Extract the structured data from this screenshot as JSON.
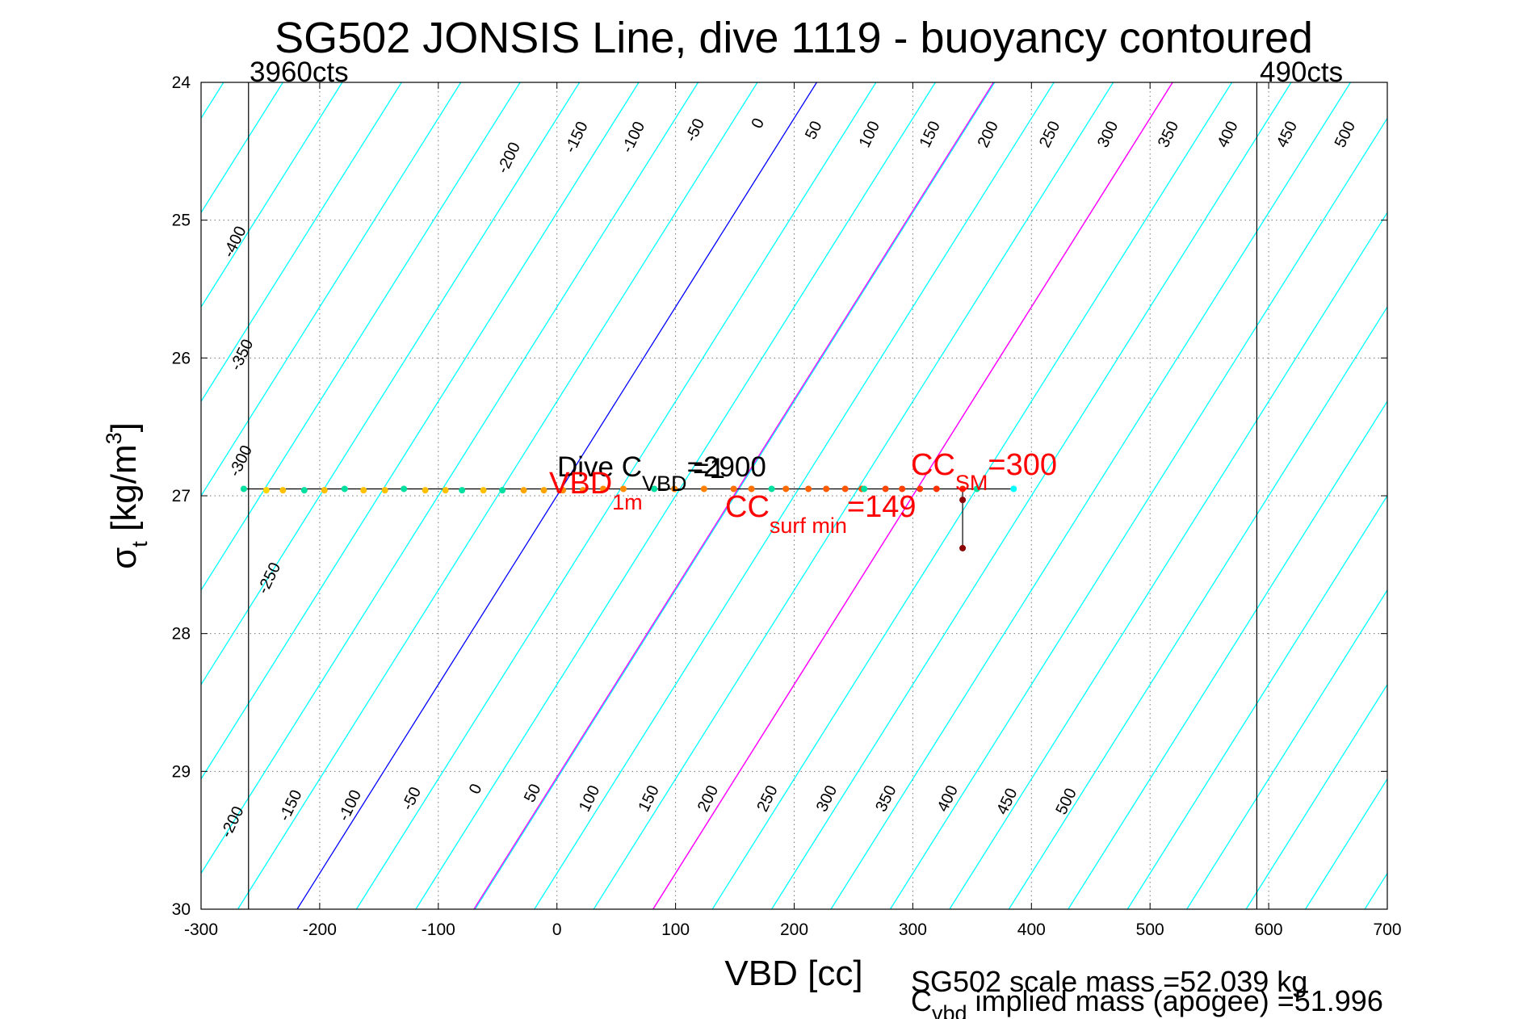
{
  "chart_data": {
    "type": "scatter",
    "title": "SG502 JONSIS Line, dive 1119 - buoyancy contoured",
    "xlabel": "VBD [cc]",
    "ylabel": {
      "sym": "σ",
      "sub": "t",
      "unit_pre": " [kg/m",
      "sup": "3",
      "unit_post": "]"
    },
    "xlim": [
      -300,
      700
    ],
    "ylim": [
      24,
      30
    ],
    "y_reversed": true,
    "grid": true,
    "xticks": [
      -300,
      -200,
      -100,
      0,
      100,
      200,
      300,
      400,
      500,
      600,
      700
    ],
    "yticks": [
      24,
      25,
      26,
      27,
      28,
      29,
      30
    ],
    "colors": {
      "contour": "#00ffff",
      "zero_contour": "#0000ff",
      "cc_contour": "#ff00ff",
      "annotation": "#ff0000"
    },
    "vbd_limits": [
      {
        "x": -260,
        "label": "3960cts"
      },
      {
        "x": 590,
        "label": "490cts"
      }
    ],
    "contours": {
      "slope_vbd_per_sigma": -73,
      "levels": [
        -400,
        -350,
        -300,
        -250,
        -200,
        -150,
        -100,
        -50,
        0,
        50,
        100,
        150,
        200,
        250,
        300,
        350,
        400,
        450,
        500
      ],
      "top_labels": [
        {
          "level": -200,
          "x": -40,
          "y": 24.55
        },
        {
          "level": -150,
          "x": 17,
          "y": 24.4
        },
        {
          "level": -100,
          "x": 65,
          "y": 24.4
        },
        {
          "level": -50,
          "x": 117,
          "y": 24.35
        },
        {
          "level": 0,
          "x": 170,
          "y": 24.3
        },
        {
          "level": 50,
          "x": 217,
          "y": 24.35
        },
        {
          "level": 100,
          "x": 264,
          "y": 24.38
        },
        {
          "level": 150,
          "x": 315,
          "y": 24.38
        },
        {
          "level": 200,
          "x": 364,
          "y": 24.38
        },
        {
          "level": 250,
          "x": 416,
          "y": 24.38
        },
        {
          "level": 300,
          "x": 465,
          "y": 24.38
        },
        {
          "level": 350,
          "x": 516,
          "y": 24.38
        },
        {
          "level": 400,
          "x": 566,
          "y": 24.38
        },
        {
          "level": 450,
          "x": 616,
          "y": 24.38
        },
        {
          "level": 500,
          "x": 665,
          "y": 24.38
        }
      ],
      "left_labels": [
        {
          "level": -400,
          "x": -271,
          "y": 25.16
        },
        {
          "level": -350,
          "x": -265,
          "y": 25.98
        },
        {
          "level": -300,
          "x": -266,
          "y": 26.75
        },
        {
          "level": -250,
          "x": -242,
          "y": 27.6
        }
      ],
      "bottom_labels": [
        {
          "level": -200,
          "x": -273,
          "y": 29.37
        },
        {
          "level": -150,
          "x": -224,
          "y": 29.25
        },
        {
          "level": -100,
          "x": -174,
          "y": 29.25
        },
        {
          "level": -50,
          "x": -122,
          "y": 29.2
        },
        {
          "level": 0,
          "x": -68,
          "y": 29.13
        },
        {
          "level": 50,
          "x": -20,
          "y": 29.16
        },
        {
          "level": 100,
          "x": 28,
          "y": 29.2
        },
        {
          "level": 150,
          "x": 78,
          "y": 29.2
        },
        {
          "level": 200,
          "x": 128,
          "y": 29.2
        },
        {
          "level": 250,
          "x": 178,
          "y": 29.2
        },
        {
          "level": 300,
          "x": 228,
          "y": 29.2
        },
        {
          "level": 350,
          "x": 278,
          "y": 29.2
        },
        {
          "level": 400,
          "x": 330,
          "y": 29.2
        },
        {
          "level": 450,
          "x": 380,
          "y": 29.22
        },
        {
          "level": 500,
          "x": 430,
          "y": 29.22
        }
      ]
    },
    "scatter_points": [
      {
        "x": -264,
        "y": 26.95,
        "color": "#00e0a0"
      },
      {
        "x": -245,
        "y": 26.96,
        "color": "#ffd700"
      },
      {
        "x": -231,
        "y": 26.96,
        "color": "#ffc000"
      },
      {
        "x": -213,
        "y": 26.96,
        "color": "#00e0a0"
      },
      {
        "x": -196,
        "y": 26.96,
        "color": "#ffc000"
      },
      {
        "x": -179,
        "y": 26.95,
        "color": "#00e0a0"
      },
      {
        "x": -163,
        "y": 26.96,
        "color": "#ffc000"
      },
      {
        "x": -145,
        "y": 26.96,
        "color": "#ffc000"
      },
      {
        "x": -129,
        "y": 26.95,
        "color": "#00e0a0"
      },
      {
        "x": -111,
        "y": 26.96,
        "color": "#ffc000"
      },
      {
        "x": -94,
        "y": 26.96,
        "color": "#ffc000"
      },
      {
        "x": -80,
        "y": 26.96,
        "color": "#00e0a0"
      },
      {
        "x": -62,
        "y": 26.96,
        "color": "#ffc000"
      },
      {
        "x": -46,
        "y": 26.96,
        "color": "#00e0a0"
      },
      {
        "x": -28,
        "y": 26.96,
        "color": "#ffa500"
      },
      {
        "x": -11,
        "y": 26.96,
        "color": "#ffa500"
      },
      {
        "x": 5,
        "y": 26.96,
        "color": "#ff8c00"
      },
      {
        "x": 22,
        "y": 26.96,
        "color": "#ff8c00"
      },
      {
        "x": 39,
        "y": 26.95,
        "color": "#ff8c00"
      },
      {
        "x": 56,
        "y": 26.95,
        "color": "#ff8c00"
      },
      {
        "x": 82,
        "y": 26.95,
        "color": "#00e0a0"
      },
      {
        "x": 99,
        "y": 26.95,
        "color": "#ff7f00"
      },
      {
        "x": 124,
        "y": 26.95,
        "color": "#ff7f00"
      },
      {
        "x": 149,
        "y": 26.95,
        "color": "#ff7000"
      },
      {
        "x": 164,
        "y": 26.95,
        "color": "#ff7000"
      },
      {
        "x": 181,
        "y": 26.95,
        "color": "#00e0a0"
      },
      {
        "x": 193,
        "y": 26.95,
        "color": "#ff6a00"
      },
      {
        "x": 212,
        "y": 26.95,
        "color": "#ff6000"
      },
      {
        "x": 227,
        "y": 26.95,
        "color": "#ff5a00"
      },
      {
        "x": 243,
        "y": 26.95,
        "color": "#ff5500"
      },
      {
        "x": 257,
        "y": 26.95,
        "color": "#ff5000"
      },
      {
        "x": 259,
        "y": 26.95,
        "color": "#00e0a0"
      },
      {
        "x": 277,
        "y": 26.95,
        "color": "#ff4500"
      },
      {
        "x": 291,
        "y": 26.95,
        "color": "#ff4000"
      },
      {
        "x": 306,
        "y": 26.95,
        "color": "#ff3a00"
      },
      {
        "x": 320,
        "y": 26.95,
        "color": "#ff3000"
      },
      {
        "x": 342,
        "y": 26.95,
        "color": "#ff2000"
      },
      {
        "x": 354,
        "y": 26.95,
        "color": "#00e0a0"
      },
      {
        "x": 385,
        "y": 26.95,
        "color": "#00ffff"
      },
      {
        "x": 342,
        "y": 27.03,
        "color": "#8b0000"
      },
      {
        "x": 342,
        "y": 27.38,
        "color": "#8b0000"
      }
    ],
    "profile_lines": [
      {
        "x": [
          -264,
          385
        ],
        "y": [
          26.95,
          26.95
        ],
        "color": "#000000"
      },
      {
        "x": [
          342,
          342
        ],
        "y": [
          26.95,
          27.38
        ],
        "color": "#000000"
      }
    ],
    "annotations": {
      "dive_cvbd": {
        "pre": "Dive C",
        "sub": "VBD",
        "post": "=2900"
      },
      "vbd_1m": {
        "pre": "VBD",
        "sub": "1m"
      },
      "vbd_1m_tail": "=1",
      "cc_sm": {
        "pre": "CC",
        "sub": "SM",
        "post": "=300"
      },
      "cc_surf_min": {
        "pre": "CC",
        "sub": "surf min",
        "post": "=149"
      }
    }
  },
  "footer": {
    "scale_mass": "SG502 scale mass =52.039 kg",
    "implied_mass": {
      "pre": "C",
      "sub": "vbd",
      "post": " implied mass (apogee) =51.996"
    }
  }
}
